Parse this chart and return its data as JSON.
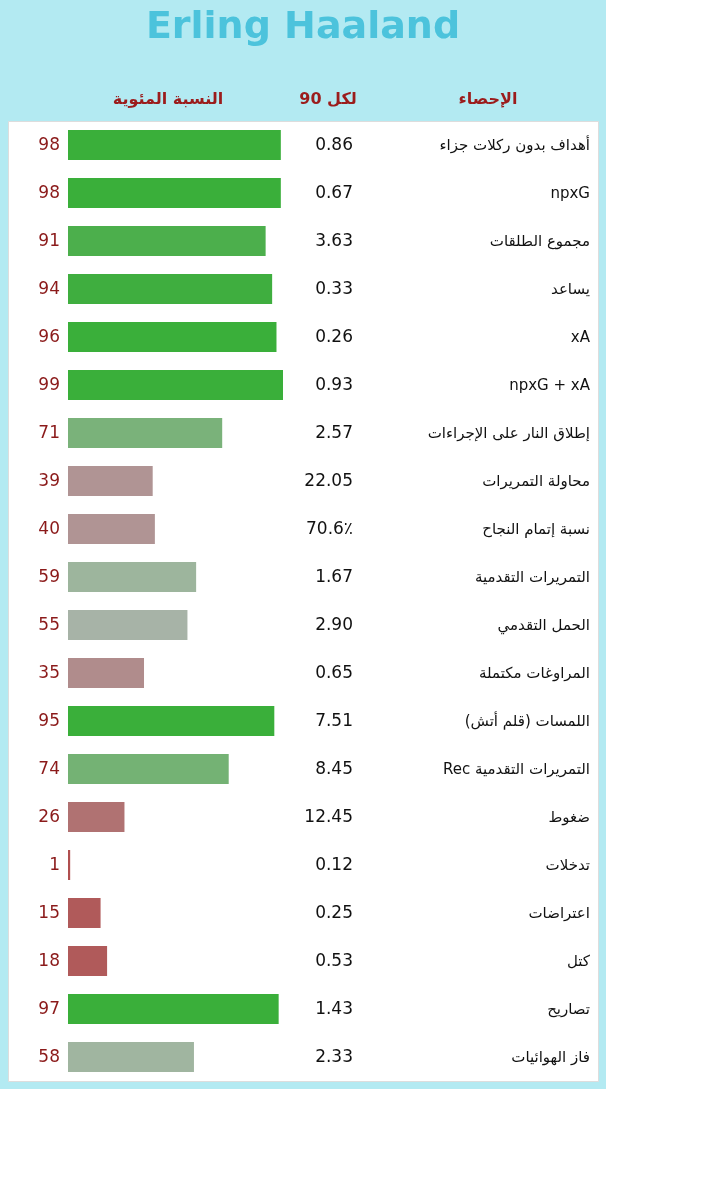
{
  "chart_data": {
    "type": "bar",
    "orientation": "horizontal",
    "title": "Erling Haaland",
    "xlabel": "النسبة المئوية",
    "ylabel": "الإحصاء",
    "data_labels": true,
    "categories": [
      "أهداف بدون ركلات جزاء",
      "npxG",
      "مجموع الطلقات",
      "يساعد",
      "xA",
      "npxG + xA",
      "إطلاق النار على الإجراءات",
      "محاولة التمريرات",
      "نسبة إتمام النجاح",
      "التمريرات التقدمية",
      "الحمل التقدمي",
      "المراوغات مكتملة",
      "اللمسات (قلم أتش)",
      "Rec التمريرات التقدمية",
      "ضغوط",
      "تدخلات",
      "اعتراضات",
      "كتل",
      "تصاريح",
      "فاز الهوائيات"
    ],
    "values": [
      98,
      98,
      91,
      94,
      96,
      99,
      71,
      39,
      40,
      59,
      55,
      35,
      95,
      74,
      26,
      1,
      15,
      18,
      97,
      58
    ],
    "colors": [
      "#3aaf3a",
      "#3aaf3a",
      "#4caf4c",
      "#3fae3f",
      "#3aaf3a",
      "#3aaf3a",
      "#7ab27a",
      "#b09494",
      "#b09494",
      "#9db59d",
      "#a7b3a7",
      "#b08c8c",
      "#3aaf3a",
      "#74b274",
      "#b07272",
      "#b04f4f",
      "#b05a5a",
      "#b05a5a",
      "#3aaf3a",
      "#a0b5a0"
    ],
    "annotations": [
      "لكل 90",
      "0.86",
      "0.67",
      "3.63",
      "0.33",
      "0.26",
      "0.93",
      "2.57",
      "22.05",
      "70.6٪",
      "1.67",
      "2.90",
      "0.65",
      "7.51",
      "8.45",
      "12.45",
      "0.12",
      "0.25",
      "0.53",
      "1.43",
      "2.33"
    ]
  }
}
